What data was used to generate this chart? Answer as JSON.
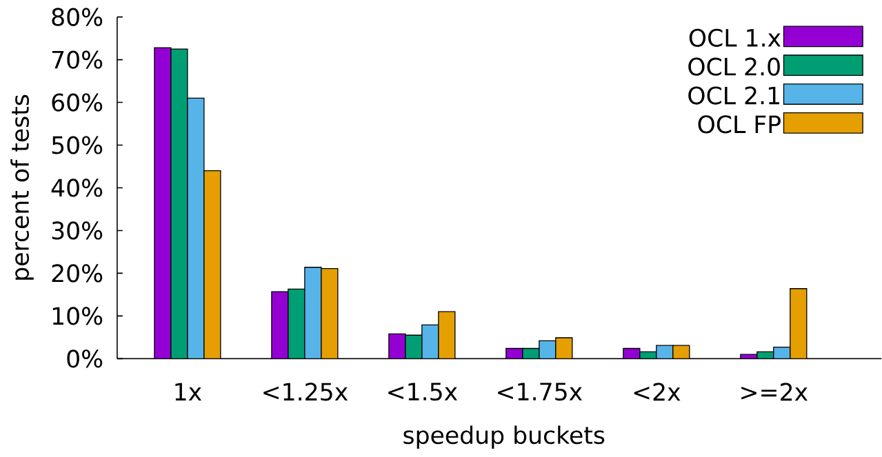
{
  "chart_data": {
    "type": "bar",
    "xlabel": "speedup buckets",
    "ylabel": "percent of tests",
    "categories": [
      "1x",
      "<1.25x",
      "<1.5x",
      "<1.75x",
      "<2x",
      ">=2x"
    ],
    "series": [
      {
        "name": "OCL 1.x",
        "color": "#9400d3",
        "values": [
          72.8,
          15.7,
          5.8,
          2.4,
          2.4,
          1.0
        ]
      },
      {
        "name": "OCL 2.0",
        "color": "#009e73",
        "values": [
          72.5,
          16.3,
          5.5,
          2.4,
          1.6,
          1.6
        ]
      },
      {
        "name": "OCL 2.1",
        "color": "#56b4e9",
        "values": [
          61.0,
          21.4,
          7.9,
          4.2,
          3.1,
          2.7
        ]
      },
      {
        "name": "OCL FP",
        "color": "#e69f00",
        "values": [
          44.0,
          21.1,
          11.0,
          4.9,
          3.1,
          16.4
        ]
      }
    ],
    "ylim": [
      0,
      80
    ],
    "yticks": [
      {
        "value": 0,
        "label": "0%"
      },
      {
        "value": 10,
        "label": "10%"
      },
      {
        "value": 20,
        "label": "20%"
      },
      {
        "value": 30,
        "label": "30%"
      },
      {
        "value": 40,
        "label": "40%"
      },
      {
        "value": 50,
        "label": "50%"
      },
      {
        "value": 60,
        "label": "60%"
      },
      {
        "value": 70,
        "label": "70%"
      },
      {
        "value": 80,
        "label": "80%"
      }
    ],
    "grid": false,
    "legend": "top right"
  }
}
